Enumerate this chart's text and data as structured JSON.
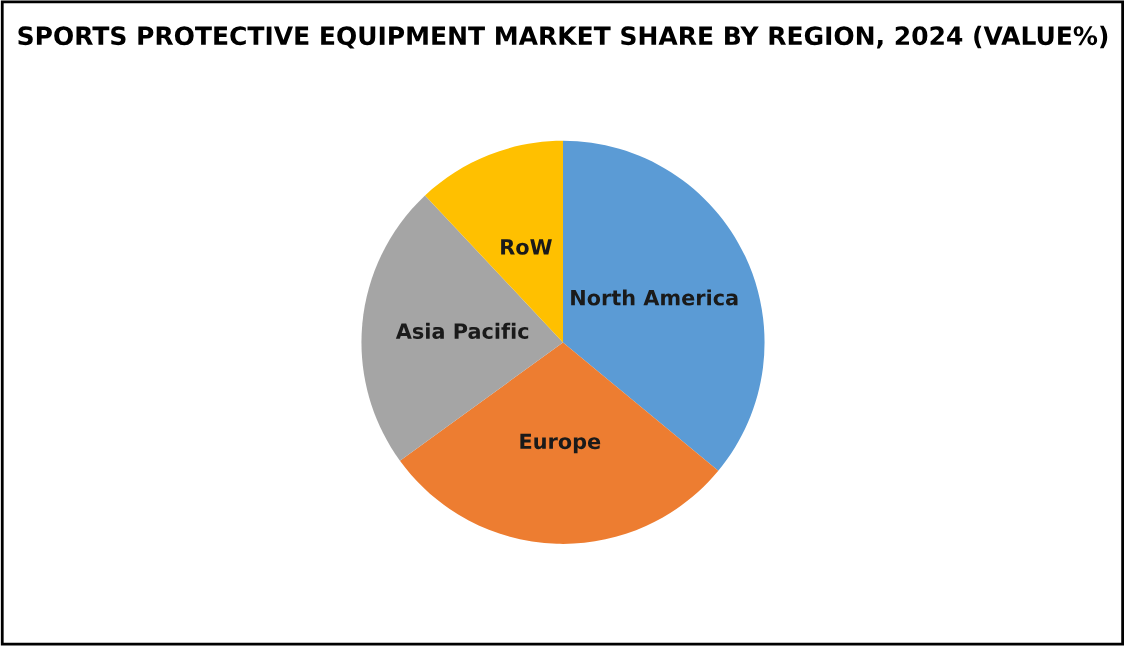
{
  "chart_data": {
    "type": "pie",
    "title": "SPORTS PROTECTIVE EQUIPMENT MARKET SHARE BY REGION, 2024 (VALUE%)",
    "categories": [
      "North America",
      "Europe",
      "Asia Pacific",
      "RoW"
    ],
    "values": [
      36,
      29,
      23,
      12
    ],
    "colors": [
      "#5b9bd5",
      "#ed7d31",
      "#a5a5a5",
      "#ffc000"
    ]
  }
}
